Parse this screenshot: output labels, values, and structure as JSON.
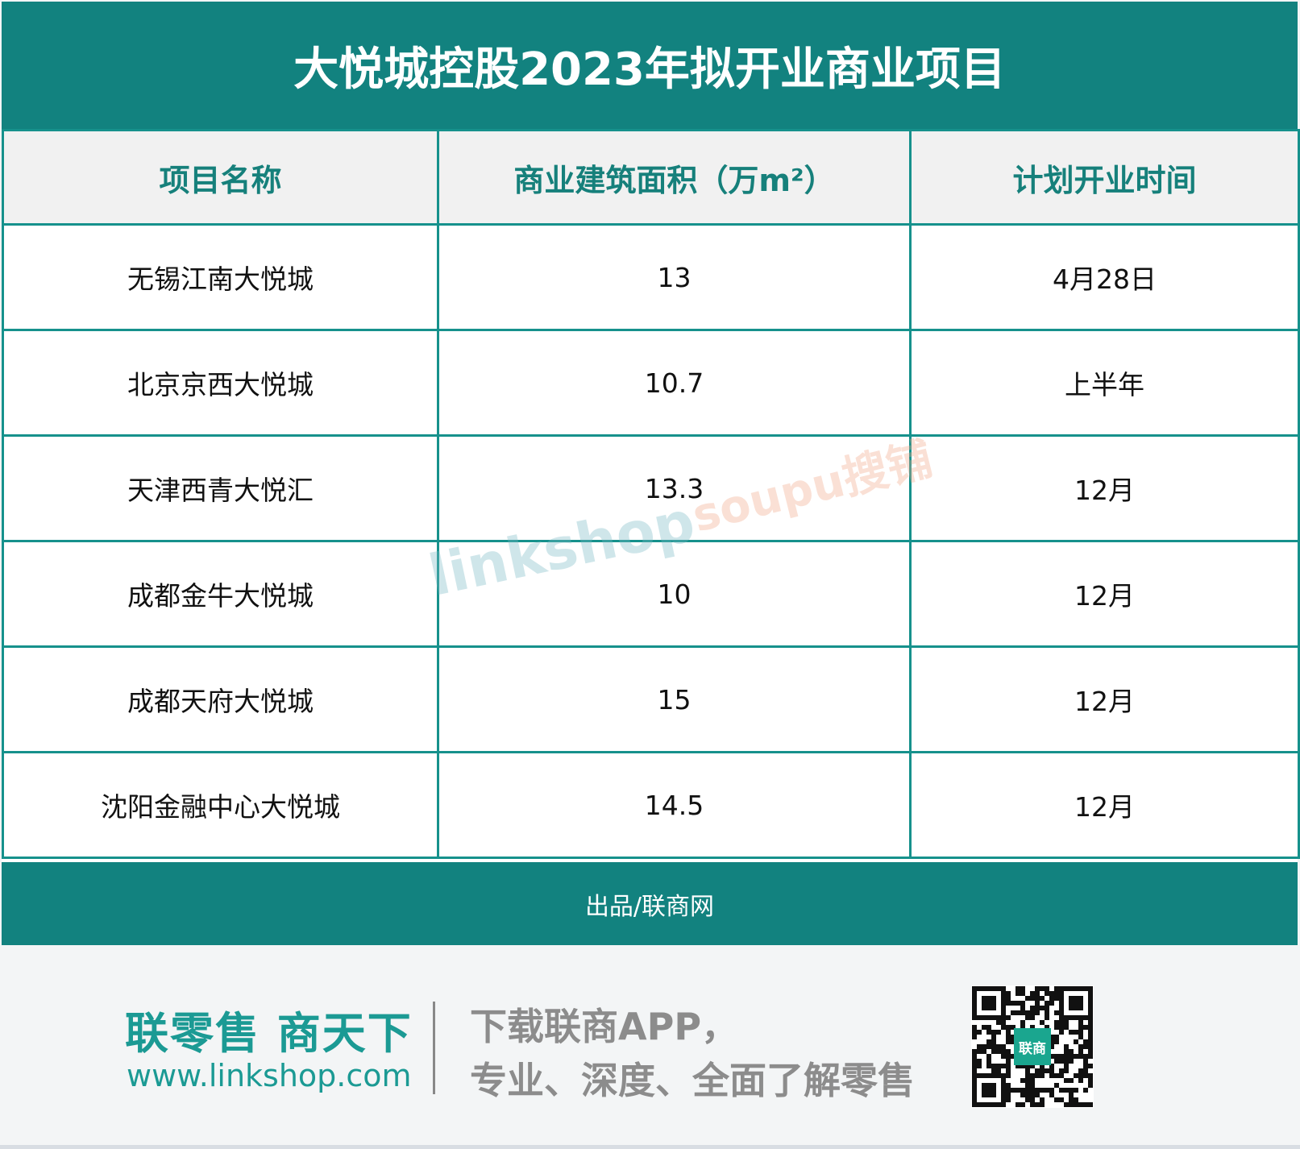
{
  "title": "大悦城控股2023年拟开业商业项目",
  "table": {
    "headers": [
      "项目名称",
      "商业建筑面积（万m²）",
      "计划开业时间"
    ],
    "rows": [
      [
        "无锡江南大悦城",
        "13",
        "4月28日"
      ],
      [
        "北京京西大悦城",
        "10.7",
        "上半年"
      ],
      [
        "天津西青大悦汇",
        "13.3",
        "12月"
      ],
      [
        "成都金牛大悦城",
        "10",
        "12月"
      ],
      [
        "成都天府大悦城",
        "15",
        "12月"
      ],
      [
        "沈阳金融中心大悦城",
        "14.5",
        "12月"
      ]
    ]
  },
  "footer": "出品/联商网",
  "promo": {
    "slogan": "联零售 商天下",
    "url": "www.linkshop.com",
    "line1": "下载联商APP，",
    "line2": "专业、深度、全面了解零售",
    "qr_logo": "联商"
  },
  "watermarks": [
    "linkshop",
    "soupu搜铺"
  ],
  "colors": {
    "brand": "#12827f",
    "accent": "#1b9a94"
  }
}
